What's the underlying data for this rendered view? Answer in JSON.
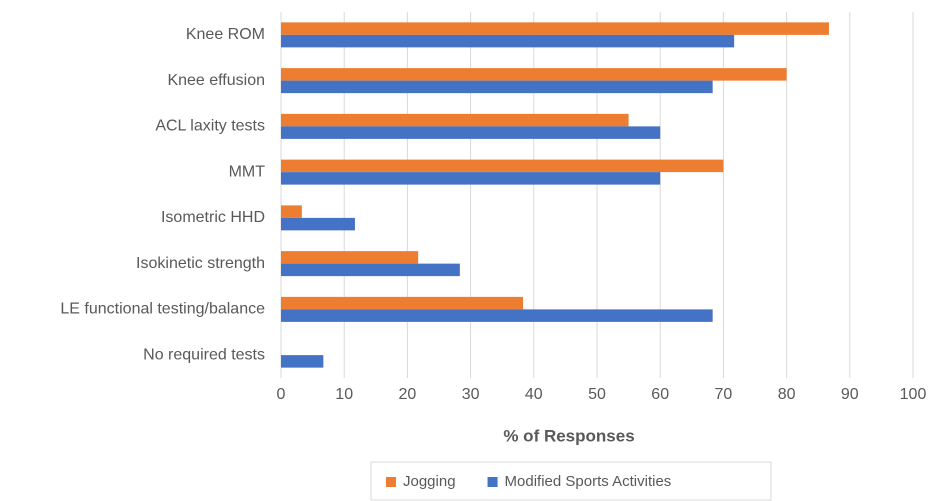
{
  "chart_data": {
    "type": "hbar",
    "categories": [
      "Knee ROM",
      "Knee effusion",
      "ACL laxity tests",
      "MMT",
      "Isometric HHD",
      "Isokinetic strength",
      "LE functional testing/balance",
      "No required tests"
    ],
    "series": [
      {
        "name": "Jogging",
        "color": "#ed7d31",
        "values": [
          86.7,
          80,
          55,
          70,
          3.3,
          21.7,
          38.3,
          0
        ]
      },
      {
        "name": "Modified Sports Activities",
        "color": "#4472c4",
        "values": [
          71.7,
          68.3,
          60,
          60,
          11.7,
          28.3,
          68.3,
          6.7
        ]
      }
    ],
    "xlabel": "% of Responses",
    "xlim": [
      0,
      100
    ],
    "xticks": [
      0,
      10,
      20,
      30,
      40,
      50,
      60,
      70,
      80,
      90,
      100
    ],
    "grid": true
  }
}
